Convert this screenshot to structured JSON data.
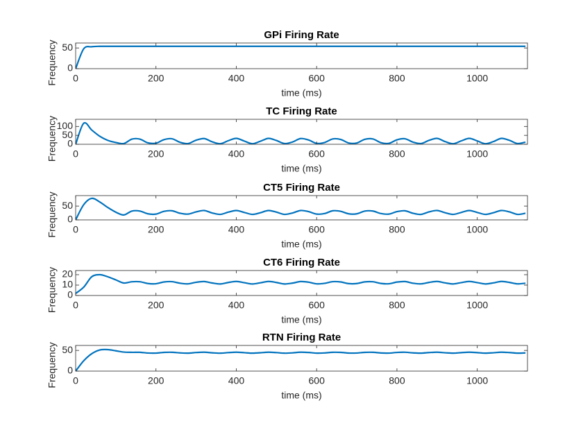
{
  "chart_data": [
    {
      "type": "line",
      "title": "GPi Firing Rate",
      "xlabel": "time (ms)",
      "ylabel": "Frequency",
      "color": "#0072bd",
      "x": [
        0,
        20,
        40,
        60,
        80,
        100,
        120,
        140,
        160,
        180,
        200,
        220,
        240,
        260,
        280,
        300,
        320,
        340,
        360,
        380,
        400,
        420,
        440,
        460,
        480,
        500,
        520,
        540,
        560,
        580,
        600,
        620,
        640,
        660,
        680,
        700,
        720,
        740,
        760,
        780,
        800,
        820,
        840,
        860,
        880,
        900,
        920,
        940,
        960,
        980,
        1000,
        1020,
        1040,
        1060,
        1080,
        1100,
        1120
      ],
      "values": [
        0,
        48,
        53,
        54,
        54,
        54,
        54,
        54,
        54,
        54,
        54,
        54,
        54,
        54,
        54,
        54,
        54,
        54,
        54,
        54,
        54,
        54,
        54,
        54,
        54,
        54,
        54,
        54,
        54,
        54,
        54,
        54,
        54,
        54,
        54,
        54,
        54,
        54,
        54,
        54,
        54,
        54,
        54,
        54,
        54,
        54,
        54,
        54,
        54,
        54,
        54,
        54,
        54,
        54,
        54,
        54,
        54
      ],
      "xlim": [
        0,
        1125
      ],
      "xticks": [
        0,
        200,
        400,
        600,
        800,
        1000
      ],
      "ylim": [
        0,
        62
      ],
      "yticks": [
        0,
        50
      ]
    },
    {
      "type": "line",
      "title": "TC Firing Rate",
      "xlabel": "time (ms)",
      "ylabel": "Frequency",
      "color": "#0072bd",
      "x": [
        0,
        20,
        40,
        60,
        80,
        100,
        120,
        140,
        160,
        180,
        200,
        220,
        240,
        260,
        280,
        300,
        320,
        340,
        360,
        380,
        400,
        420,
        440,
        460,
        480,
        500,
        520,
        540,
        560,
        580,
        600,
        620,
        640,
        660,
        680,
        700,
        720,
        740,
        760,
        780,
        800,
        820,
        840,
        860,
        880,
        900,
        920,
        940,
        960,
        980,
        1000,
        1020,
        1040,
        1060,
        1080,
        1100,
        1120
      ],
      "values": [
        0,
        118,
        80,
        45,
        22,
        10,
        4,
        29,
        29,
        8,
        6,
        26,
        31,
        11,
        4,
        23,
        32,
        14,
        3,
        20,
        33,
        18,
        3,
        17,
        33,
        21,
        4,
        13,
        32,
        24,
        5,
        10,
        30,
        27,
        7,
        7,
        28,
        30,
        9,
        5,
        25,
        31,
        12,
        4,
        22,
        33,
        15,
        3,
        19,
        33,
        19,
        3,
        15,
        33,
        22,
        4,
        12
      ],
      "xlim": [
        0,
        1125
      ],
      "xticks": [
        0,
        200,
        400,
        600,
        800,
        1000
      ],
      "ylim": [
        0,
        140
      ],
      "yticks": [
        0,
        50,
        100
      ]
    },
    {
      "type": "line",
      "title": "CT5 Firing Rate",
      "xlabel": "time (ms)",
      "ylabel": "Frequency",
      "color": "#0072bd",
      "x": [
        0,
        20,
        40,
        60,
        80,
        100,
        120,
        140,
        160,
        180,
        200,
        220,
        240,
        260,
        280,
        300,
        320,
        340,
        360,
        380,
        400,
        420,
        440,
        460,
        480,
        500,
        520,
        540,
        560,
        580,
        600,
        620,
        640,
        660,
        680,
        700,
        720,
        740,
        760,
        780,
        800,
        820,
        840,
        860,
        880,
        900,
        920,
        940,
        960,
        980,
        1000,
        1020,
        1040,
        1060,
        1080,
        1100,
        1120
      ],
      "values": [
        0,
        55,
        78,
        65,
        45,
        28,
        18,
        32,
        32,
        22,
        21,
        31,
        33,
        24,
        21,
        29,
        34,
        25,
        20,
        28,
        34,
        27,
        20,
        26,
        34,
        28,
        20,
        25,
        34,
        30,
        21,
        23,
        33,
        31,
        22,
        22,
        32,
        32,
        23,
        21,
        30,
        33,
        24,
        20,
        29,
        34,
        26,
        20,
        27,
        34,
        27,
        20,
        26,
        34,
        29,
        20,
        24
      ],
      "xlim": [
        0,
        1125
      ],
      "xticks": [
        0,
        200,
        400,
        600,
        800,
        1000
      ],
      "ylim": [
        0,
        88
      ],
      "yticks": [
        0,
        50
      ]
    },
    {
      "type": "line",
      "title": "CT6 Firing Rate",
      "xlabel": "time (ms)",
      "ylabel": "Frequency",
      "color": "#0072bd",
      "x": [
        0,
        20,
        40,
        60,
        80,
        100,
        120,
        140,
        160,
        180,
        200,
        220,
        240,
        260,
        280,
        300,
        320,
        340,
        360,
        380,
        400,
        420,
        440,
        460,
        480,
        500,
        520,
        540,
        560,
        580,
        600,
        620,
        640,
        660,
        680,
        700,
        720,
        740,
        760,
        780,
        800,
        820,
        840,
        860,
        880,
        900,
        920,
        940,
        960,
        980,
        1000,
        1020,
        1040,
        1060,
        1080,
        1100,
        1120
      ],
      "values": [
        2,
        8,
        18,
        20,
        18,
        15,
        12,
        13.2,
        13.2,
        11.5,
        11.3,
        13.0,
        13.3,
        11.8,
        11.2,
        12.7,
        13.4,
        12.0,
        11.1,
        12.5,
        13.5,
        12.3,
        11.1,
        12.2,
        13.5,
        12.5,
        11.1,
        11.9,
        13.4,
        12.8,
        11.2,
        11.7,
        13.3,
        13.0,
        11.4,
        11.5,
        13.1,
        13.2,
        11.6,
        11.3,
        12.9,
        13.4,
        11.8,
        11.2,
        12.6,
        13.5,
        12.1,
        11.1,
        12.4,
        13.5,
        12.4,
        11.1,
        12.1,
        13.5,
        12.6,
        11.2,
        11.8
      ],
      "xlim": [
        0,
        1125
      ],
      "xticks": [
        0,
        200,
        400,
        600,
        800,
        1000
      ],
      "ylim": [
        0,
        24
      ],
      "yticks": [
        0,
        10,
        20
      ]
    },
    {
      "type": "line",
      "title": "RTN Firing Rate",
      "xlabel": "time (ms)",
      "ylabel": "Frequency",
      "color": "#0072bd",
      "x": [
        0,
        20,
        40,
        60,
        80,
        100,
        120,
        140,
        160,
        180,
        200,
        220,
        240,
        260,
        280,
        300,
        320,
        340,
        360,
        380,
        400,
        420,
        440,
        460,
        480,
        500,
        520,
        540,
        560,
        580,
        600,
        620,
        640,
        660,
        680,
        700,
        720,
        740,
        760,
        780,
        800,
        820,
        840,
        860,
        880,
        900,
        920,
        940,
        960,
        980,
        1000,
        1020,
        1040,
        1060,
        1080,
        1100,
        1120
      ],
      "values": [
        0,
        25,
        42,
        51,
        52,
        49,
        46,
        45.4,
        45.4,
        43.7,
        43.5,
        45.2,
        45.5,
        44.0,
        43.4,
        44.9,
        45.6,
        44.2,
        43.3,
        44.7,
        45.7,
        44.5,
        43.3,
        44.4,
        45.7,
        44.7,
        43.3,
        44.1,
        45.6,
        45.0,
        43.4,
        43.9,
        45.5,
        45.2,
        43.6,
        43.7,
        45.3,
        45.4,
        43.8,
        43.5,
        45.1,
        45.6,
        44.0,
        43.4,
        44.8,
        45.7,
        44.3,
        43.3,
        44.6,
        45.7,
        44.6,
        43.3,
        44.3,
        45.7,
        44.8,
        43.4,
        44.0
      ],
      "xlim": [
        0,
        1125
      ],
      "xticks": [
        0,
        200,
        400,
        600,
        800,
        1000
      ],
      "ylim": [
        0,
        62
      ],
      "yticks": [
        0,
        50
      ]
    }
  ]
}
